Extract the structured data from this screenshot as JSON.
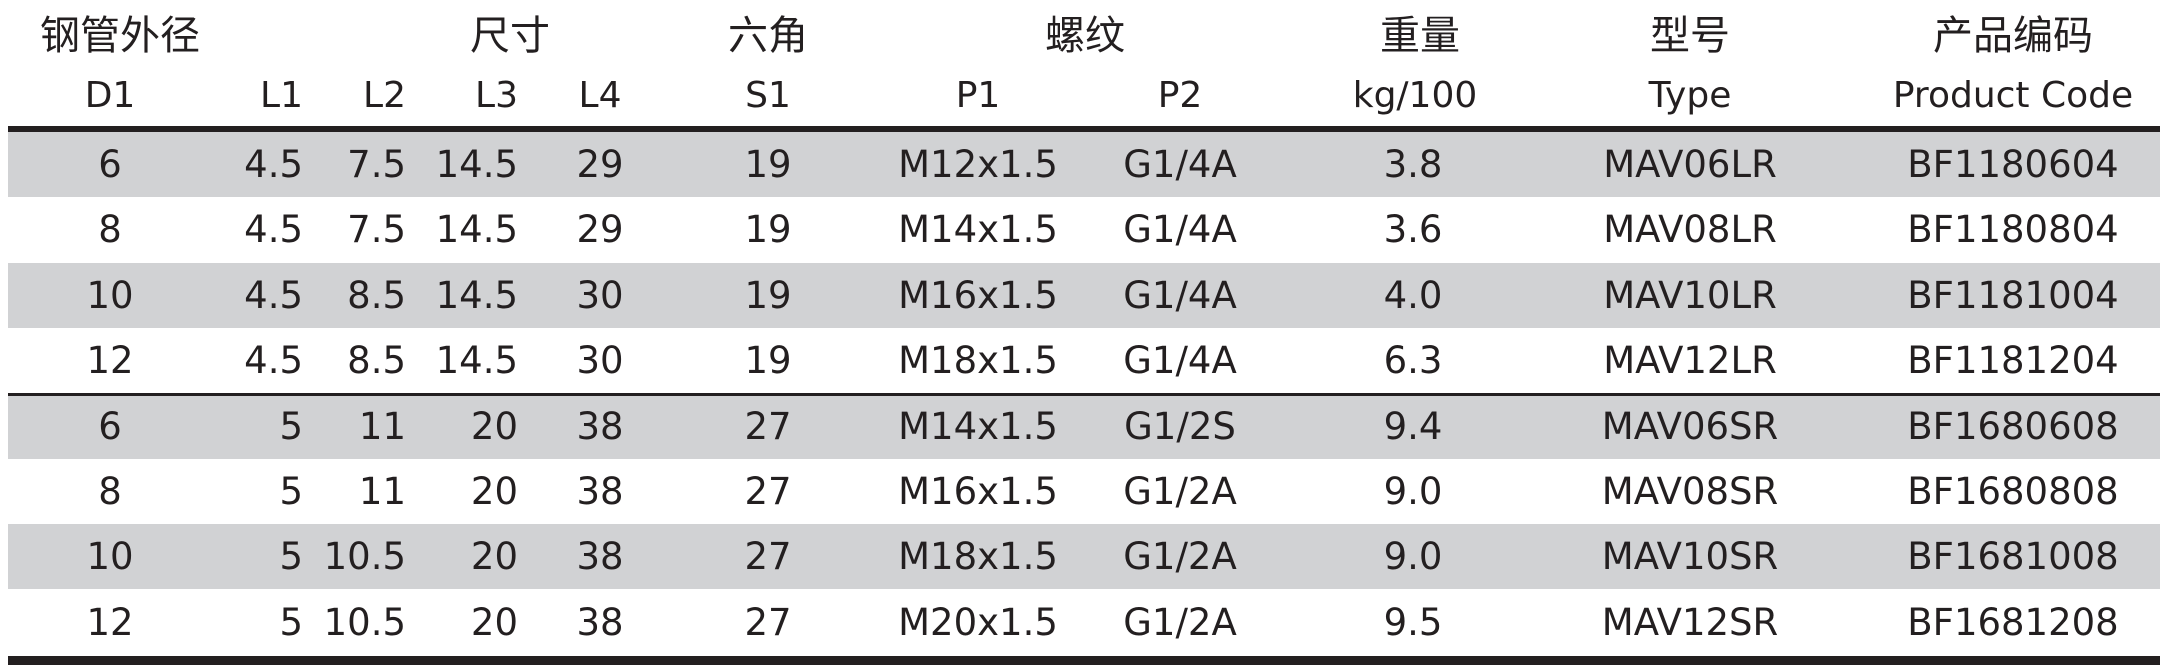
{
  "header_groups": [
    {
      "key": "g_d1",
      "label": "钢管外径"
    },
    {
      "key": "g_dim",
      "label": "尺寸"
    },
    {
      "key": "g_hex",
      "label": "六角"
    },
    {
      "key": "g_thread",
      "label": "螺纹"
    },
    {
      "key": "g_weight",
      "label": "重量"
    },
    {
      "key": "g_type",
      "label": "型号"
    },
    {
      "key": "g_code",
      "label": "产品编码"
    }
  ],
  "columns": [
    {
      "key": "d1",
      "label": "D1"
    },
    {
      "key": "l1",
      "label": "L1"
    },
    {
      "key": "l2",
      "label": "L2"
    },
    {
      "key": "l3",
      "label": "L3"
    },
    {
      "key": "l4",
      "label": "L4"
    },
    {
      "key": "s1",
      "label": "S1"
    },
    {
      "key": "p1",
      "label": "P1"
    },
    {
      "key": "p2",
      "label": "P2"
    },
    {
      "key": "weight",
      "label": "kg/100"
    },
    {
      "key": "type",
      "label": "Type"
    },
    {
      "key": "code",
      "label": "Product Code"
    }
  ],
  "rows": [
    {
      "d1": "6",
      "l1": "4.5",
      "l2": "7.5",
      "l3": "14.5",
      "l4": "29",
      "s1": "19",
      "p1": "M12x1.5",
      "p2": "G1/4A",
      "weight": "3.8",
      "type": "MAV06LR",
      "code": "BF1180604"
    },
    {
      "d1": "8",
      "l1": "4.5",
      "l2": "7.5",
      "l3": "14.5",
      "l4": "29",
      "s1": "19",
      "p1": "M14x1.5",
      "p2": "G1/4A",
      "weight": "3.6",
      "type": "MAV08LR",
      "code": "BF1180804"
    },
    {
      "d1": "10",
      "l1": "4.5",
      "l2": "8.5",
      "l3": "14.5",
      "l4": "30",
      "s1": "19",
      "p1": "M16x1.5",
      "p2": "G1/4A",
      "weight": "4.0",
      "type": "MAV10LR",
      "code": "BF1181004"
    },
    {
      "d1": "12",
      "l1": "4.5",
      "l2": "8.5",
      "l3": "14.5",
      "l4": "30",
      "s1": "19",
      "p1": "M18x1.5",
      "p2": "G1/4A",
      "weight": "6.3",
      "type": "MAV12LR",
      "code": "BF1181204"
    },
    {
      "d1": "6",
      "l1": "5",
      "l2": "11",
      "l3": "20",
      "l4": "38",
      "s1": "27",
      "p1": "M14x1.5",
      "p2": "G1/2S",
      "weight": "9.4",
      "type": "MAV06SR",
      "code": "BF1680608"
    },
    {
      "d1": "8",
      "l1": "5",
      "l2": "11",
      "l3": "20",
      "l4": "38",
      "s1": "27",
      "p1": "M16x1.5",
      "p2": "G1/2A",
      "weight": "9.0",
      "type": "MAV08SR",
      "code": "BF1680808"
    },
    {
      "d1": "10",
      "l1": "5",
      "l2": "10.5",
      "l3": "20",
      "l4": "38",
      "s1": "27",
      "p1": "M18x1.5",
      "p2": "G1/2A",
      "weight": "9.0",
      "type": "MAV10SR",
      "code": "BF1681008"
    },
    {
      "d1": "12",
      "l1": "5",
      "l2": "10.5",
      "l3": "20",
      "l4": "38",
      "s1": "27",
      "p1": "M20x1.5",
      "p2": "G1/2A",
      "weight": "9.5",
      "type": "MAV12SR",
      "code": "BF1681208"
    }
  ]
}
